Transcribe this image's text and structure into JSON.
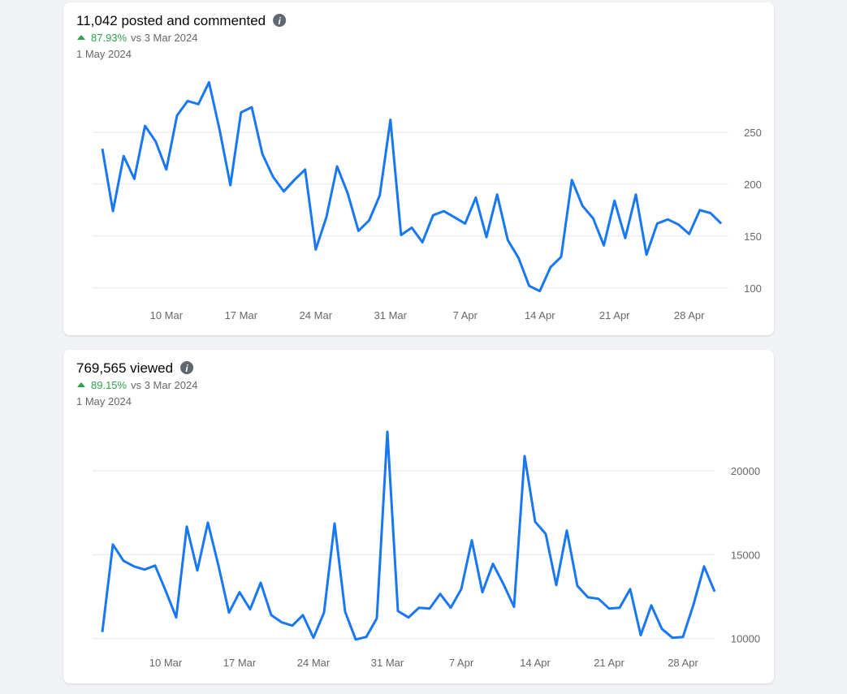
{
  "chart_data": [
    {
      "type": "line",
      "title": "11,042 posted and commented",
      "change": "87.93%",
      "comparison": "vs 3 Mar 2024",
      "date": "1 May 2024",
      "color": "#1877f2",
      "grid": true,
      "categories": [
        null,
        null,
        null,
        null,
        null,
        null,
        "10 Mar",
        null,
        null,
        null,
        null,
        null,
        null,
        "17 Mar",
        null,
        null,
        null,
        null,
        null,
        null,
        "24 Mar",
        null,
        null,
        null,
        null,
        null,
        null,
        "31 Mar",
        null,
        null,
        null,
        null,
        null,
        null,
        "7 Apr",
        null,
        null,
        null,
        null,
        null,
        null,
        "14 Apr",
        null,
        null,
        null,
        null,
        null,
        null,
        "21 Apr",
        null,
        null,
        null,
        null,
        null,
        null,
        "28 Apr",
        null,
        null,
        null
      ],
      "values": [
        234,
        174,
        227,
        205,
        256,
        241,
        214,
        266,
        280,
        277,
        298,
        252,
        199,
        269,
        274,
        229,
        207,
        193,
        204,
        214,
        137,
        168,
        217,
        191,
        155,
        165,
        189,
        262,
        151,
        158,
        144,
        170,
        174,
        168,
        162,
        187,
        149,
        190,
        146,
        129,
        102,
        97,
        120,
        130,
        204,
        179,
        167,
        141,
        184,
        148,
        190,
        132,
        162,
        166,
        161,
        152,
        175,
        172,
        162
      ],
      "ylim": [
        92,
        303
      ],
      "yticks": [
        100,
        150,
        200,
        250
      ]
    },
    {
      "type": "line",
      "title": "769,565 viewed",
      "change": "89.15%",
      "comparison": "vs 3 Mar 2024",
      "date": "1 May 2024",
      "color": "#1877f2",
      "grid": true,
      "categories": [
        null,
        null,
        null,
        null,
        null,
        null,
        "10 Mar",
        null,
        null,
        null,
        null,
        null,
        null,
        "17 Mar",
        null,
        null,
        null,
        null,
        null,
        null,
        "24 Mar",
        null,
        null,
        null,
        null,
        null,
        null,
        "31 Mar",
        null,
        null,
        null,
        null,
        null,
        null,
        "7 Apr",
        null,
        null,
        null,
        null,
        null,
        null,
        "14 Apr",
        null,
        null,
        null,
        null,
        null,
        null,
        "21 Apr",
        null,
        null,
        null,
        null,
        null,
        null,
        "28 Apr",
        null,
        null,
        null
      ],
      "values": [
        10388,
        15605,
        14640,
        14300,
        14110,
        14350,
        12850,
        11260,
        16670,
        14060,
        16910,
        14350,
        11550,
        12760,
        11740,
        13330,
        11400,
        10970,
        10770,
        11400,
        10050,
        11550,
        16860,
        11600,
        9950,
        10100,
        11210,
        22320,
        11640,
        11260,
        11840,
        11790,
        12660,
        11840,
        12950,
        15850,
        12760,
        14450,
        13240,
        11890,
        20870,
        16960,
        16230,
        13190,
        16430,
        13140,
        12460,
        12370,
        11790,
        11840,
        12950,
        10200,
        11980,
        10580,
        10050,
        10100,
        12030,
        14300,
        12800
      ],
      "ylim": [
        9600,
        22800
      ],
      "yticks": [
        10000,
        15000,
        20000
      ]
    }
  ]
}
